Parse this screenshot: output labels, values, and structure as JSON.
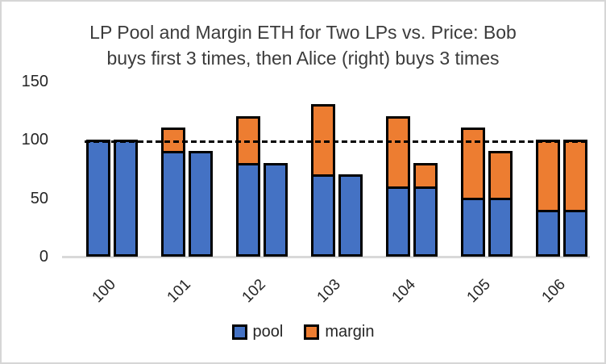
{
  "title": {
    "line1": "LP Pool and Margin ETH for Two LPs vs. Price: Bob",
    "line2": "buys first 3 times, then Alice (right) buys 3 times"
  },
  "colors": {
    "pool": "#4472C4",
    "margin": "#ED7D31",
    "bar_border": "#000000",
    "axis_line": "#D9D9D9",
    "reference_line": "#000000"
  },
  "chart_data": {
    "type": "bar",
    "stacked": true,
    "title": "LP Pool and Margin ETH for Two LPs vs. Price: Bob buys first 3 times, then Alice (right) buys 3 times",
    "categories": [
      "100",
      "101",
      "102",
      "103",
      "104",
      "105",
      "106"
    ],
    "xlabel": "",
    "ylabel": "",
    "ylim": [
      0,
      150
    ],
    "yticks": [
      0,
      50,
      100,
      150
    ],
    "grid": false,
    "legend_position": "bottom",
    "bars_per_category": [
      "Bob",
      "Alice"
    ],
    "series": [
      {
        "name": "pool",
        "color": "#4472C4",
        "values": {
          "bob": [
            100,
            90,
            80,
            70,
            60,
            50,
            40
          ],
          "alice": [
            100,
            90,
            80,
            70,
            60,
            50,
            40
          ]
        }
      },
      {
        "name": "margin",
        "color": "#ED7D31",
        "values": {
          "bob": [
            0,
            20,
            40,
            60,
            60,
            60,
            60
          ],
          "alice": [
            0,
            0,
            0,
            0,
            20,
            40,
            60
          ]
        }
      }
    ],
    "reference_line": {
      "value": 100,
      "style": "dashed",
      "color": "#000000"
    }
  }
}
